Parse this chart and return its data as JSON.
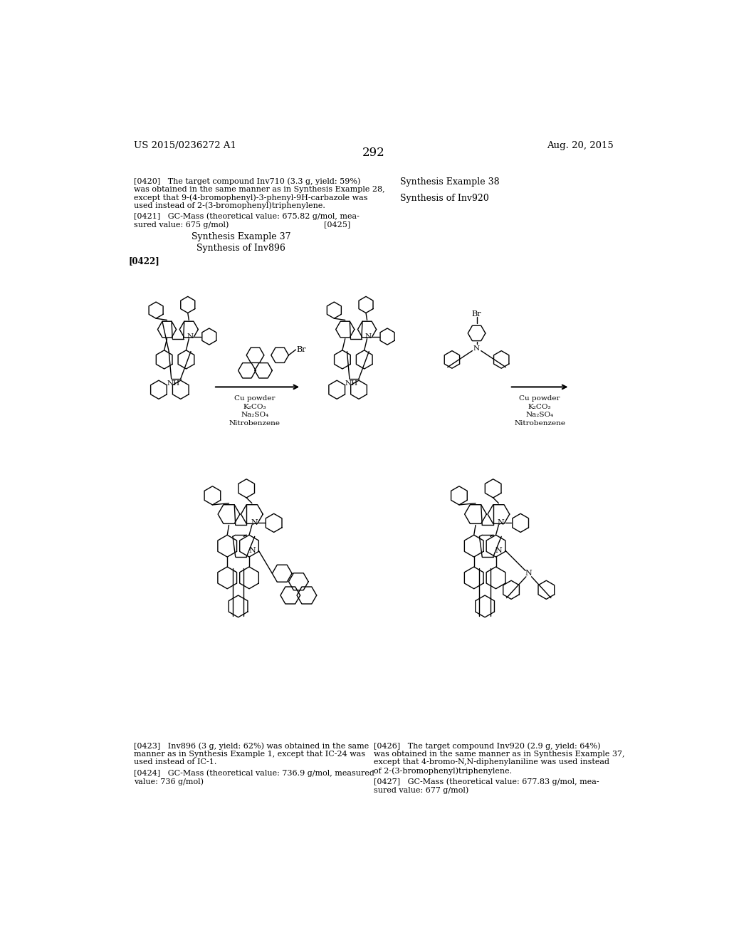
{
  "page_number": "292",
  "header_left": "US 2015/0236272 A1",
  "header_right": "Aug. 20, 2015",
  "background_color": "#ffffff",
  "text_color": "#000000",
  "figsize": [
    10.24,
    13.2
  ],
  "dpi": 100
}
